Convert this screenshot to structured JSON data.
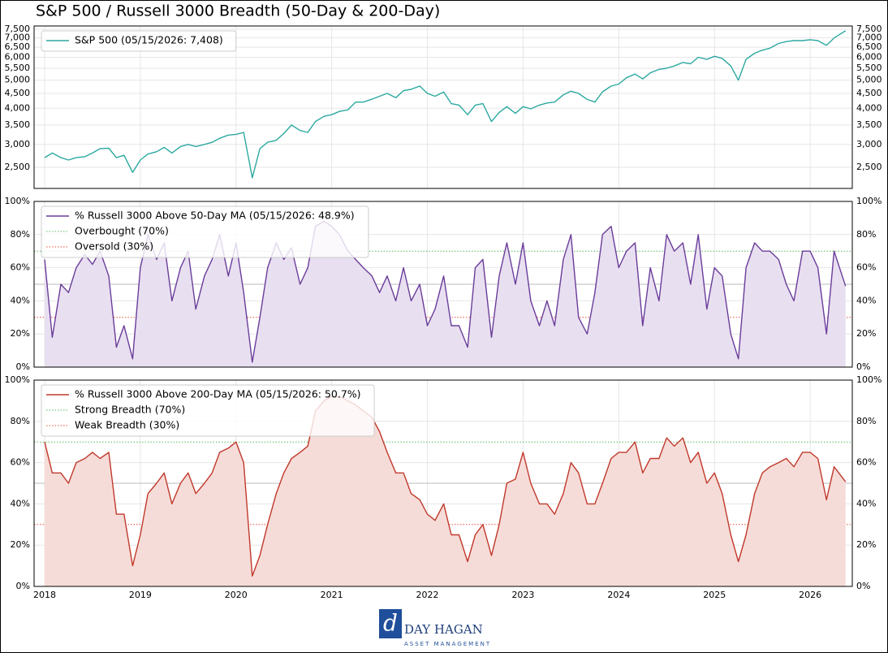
{
  "title": "S&P 500 / Russell 3000 Breadth (50-Day & 200-Day)",
  "logo": {
    "name": "DAY HAGAN",
    "tagline": "ASSET MANAGEMENT"
  },
  "chart_data": [
    {
      "type": "line",
      "log_y": true,
      "grid": true,
      "legend": "upper left",
      "fill": false,
      "x": [
        2018,
        2018.08,
        2018.17,
        2018.25,
        2018.33,
        2018.42,
        2018.5,
        2018.58,
        2018.67,
        2018.75,
        2018.83,
        2018.92,
        2019,
        2019.08,
        2019.17,
        2019.25,
        2019.33,
        2019.42,
        2019.5,
        2019.58,
        2019.67,
        2019.75,
        2019.83,
        2019.92,
        2020,
        2020.08,
        2020.17,
        2020.25,
        2020.33,
        2020.42,
        2020.5,
        2020.58,
        2020.67,
        2020.75,
        2020.83,
        2020.92,
        2021,
        2021.08,
        2021.17,
        2021.25,
        2021.33,
        2021.42,
        2021.5,
        2021.58,
        2021.67,
        2021.75,
        2021.83,
        2021.92,
        2022,
        2022.08,
        2022.17,
        2022.25,
        2022.33,
        2022.42,
        2022.5,
        2022.58,
        2022.67,
        2022.75,
        2022.83,
        2022.92,
        2023,
        2023.08,
        2023.17,
        2023.25,
        2023.33,
        2023.42,
        2023.5,
        2023.58,
        2023.67,
        2023.75,
        2023.83,
        2023.92,
        2024,
        2024.08,
        2024.17,
        2024.25,
        2024.33,
        2024.42,
        2024.5,
        2024.58,
        2024.67,
        2024.75,
        2024.83,
        2024.92,
        2025,
        2025.08,
        2025.17,
        2025.25,
        2025.33,
        2025.42,
        2025.5,
        2025.58,
        2025.67,
        2025.75,
        2025.83,
        2025.92,
        2026,
        2026.08,
        2026.17,
        2026.25,
        2026.37
      ],
      "series": [
        {
          "name": "S&P 500 (05/15/2026: 7,408)",
          "color": "#2ca9a1",
          "values": [
            2700,
            2800,
            2700,
            2650,
            2700,
            2720,
            2800,
            2900,
            2910,
            2700,
            2750,
            2400,
            2650,
            2780,
            2830,
            2930,
            2800,
            2950,
            3000,
            2950,
            3000,
            3050,
            3150,
            3230,
            3250,
            3300,
            2300,
            2900,
            3050,
            3100,
            3270,
            3500,
            3350,
            3300,
            3600,
            3750,
            3800,
            3900,
            3950,
            4200,
            4200,
            4300,
            4400,
            4500,
            4350,
            4600,
            4650,
            4770,
            4500,
            4400,
            4550,
            4150,
            4100,
            3800,
            4100,
            4150,
            3600,
            3870,
            4050,
            3840,
            4050,
            3980,
            4100,
            4170,
            4200,
            4450,
            4580,
            4500,
            4290,
            4200,
            4560,
            4770,
            4850,
            5100,
            5250,
            5050,
            5300,
            5450,
            5500,
            5600,
            5760,
            5700,
            6000,
            5900,
            6050,
            5950,
            5600,
            5000,
            5900,
            6200,
            6350,
            6450,
            6700,
            6800,
            6850,
            6850,
            6900,
            6850,
            6600,
            7000,
            7408
          ]
        }
      ],
      "xlim": [
        2017.89,
        2026.44
      ],
      "xticks": [
        2018,
        2019,
        2020,
        2021,
        2022,
        2023,
        2024,
        2025,
        2026
      ],
      "ylim": [
        2113,
        7697
      ],
      "yticks": [
        {
          "value": 2500,
          "label": "2,500"
        },
        {
          "value": 3000,
          "label": "3,000"
        },
        {
          "value": 3500,
          "label": "3,500"
        },
        {
          "value": 4000,
          "label": "4,000"
        },
        {
          "value": 4500,
          "label": "4,500"
        },
        {
          "value": 5000,
          "label": "5,000"
        },
        {
          "value": 5500,
          "label": "5,500"
        },
        {
          "value": 6000,
          "label": "6,000"
        },
        {
          "value": 6500,
          "label": "6,500"
        },
        {
          "value": 7000,
          "label": "7,000"
        },
        {
          "value": 7500,
          "label": "7,500"
        }
      ]
    },
    {
      "type": "line",
      "log_y": false,
      "grid": true,
      "legend": "upper left",
      "fill": true,
      "fill_color": "#e8dff0",
      "midline": 50,
      "x": [
        2018,
        2018.08,
        2018.17,
        2018.25,
        2018.33,
        2018.42,
        2018.5,
        2018.58,
        2018.67,
        2018.75,
        2018.83,
        2018.92,
        2019,
        2019.08,
        2019.17,
        2019.25,
        2019.33,
        2019.42,
        2019.5,
        2019.58,
        2019.67,
        2019.75,
        2019.83,
        2019.92,
        2020,
        2020.08,
        2020.17,
        2020.25,
        2020.33,
        2020.42,
        2020.5,
        2020.58,
        2020.67,
        2020.75,
        2020.83,
        2020.92,
        2021,
        2021.08,
        2021.17,
        2021.25,
        2021.33,
        2021.42,
        2021.5,
        2021.58,
        2021.67,
        2021.75,
        2021.83,
        2021.92,
        2022,
        2022.08,
        2022.17,
        2022.25,
        2022.33,
        2022.42,
        2022.5,
        2022.58,
        2022.67,
        2022.75,
        2022.83,
        2022.92,
        2023,
        2023.08,
        2023.17,
        2023.25,
        2023.33,
        2023.42,
        2023.5,
        2023.58,
        2023.67,
        2023.75,
        2023.83,
        2023.92,
        2024,
        2024.08,
        2024.17,
        2024.25,
        2024.33,
        2024.42,
        2024.5,
        2024.58,
        2024.67,
        2024.75,
        2024.83,
        2024.92,
        2025,
        2025.08,
        2025.17,
        2025.25,
        2025.33,
        2025.42,
        2025.5,
        2025.58,
        2025.67,
        2025.75,
        2025.83,
        2025.92,
        2026,
        2026.08,
        2026.17,
        2026.25,
        2026.37
      ],
      "series": [
        {
          "name": "% Russell 3000 Above 50-Day MA (05/15/2026: 48.9%)",
          "color": "#6a3d9a",
          "values": [
            65,
            18,
            50,
            45,
            60,
            68,
            62,
            70,
            55,
            12,
            25,
            5,
            60,
            80,
            65,
            75,
            40,
            60,
            70,
            35,
            55,
            65,
            80,
            55,
            75,
            45,
            3,
            30,
            60,
            75,
            65,
            72,
            50,
            60,
            85,
            88,
            85,
            80,
            70,
            65,
            60,
            55,
            45,
            55,
            40,
            60,
            40,
            50,
            25,
            35,
            55,
            25,
            25,
            12,
            60,
            65,
            18,
            55,
            75,
            50,
            75,
            40,
            25,
            40,
            25,
            65,
            80,
            30,
            20,
            45,
            80,
            85,
            60,
            70,
            75,
            25,
            60,
            40,
            80,
            70,
            75,
            50,
            80,
            35,
            60,
            55,
            20,
            5,
            60,
            75,
            70,
            70,
            65,
            50,
            40,
            70,
            70,
            60,
            20,
            70,
            48.9
          ]
        }
      ],
      "hlines": [
        {
          "name": "Overbought (70%)",
          "value": 70,
          "color": "#5cb85c"
        },
        {
          "name": "Oversold (30%)",
          "value": 30,
          "color": "#e74c3c"
        }
      ],
      "xlim": [
        2017.89,
        2026.44
      ],
      "xticks": [
        2018,
        2019,
        2020,
        2021,
        2022,
        2023,
        2024,
        2025,
        2026
      ],
      "ylim": [
        0,
        100
      ],
      "yticks": [
        {
          "value": 0,
          "label": "0%"
        },
        {
          "value": 20,
          "label": "20%"
        },
        {
          "value": 40,
          "label": "40%"
        },
        {
          "value": 60,
          "label": "60%"
        },
        {
          "value": 80,
          "label": "80%"
        },
        {
          "value": 100,
          "label": "100%"
        }
      ]
    },
    {
      "type": "line",
      "log_y": false,
      "grid": true,
      "legend": "upper left",
      "fill": true,
      "fill_color": "#f6dcd8",
      "midline": 50,
      "x": [
        2018,
        2018.08,
        2018.17,
        2018.25,
        2018.33,
        2018.42,
        2018.5,
        2018.58,
        2018.67,
        2018.75,
        2018.83,
        2018.92,
        2019,
        2019.08,
        2019.17,
        2019.25,
        2019.33,
        2019.42,
        2019.5,
        2019.58,
        2019.67,
        2019.75,
        2019.83,
        2019.92,
        2020,
        2020.08,
        2020.17,
        2020.25,
        2020.33,
        2020.42,
        2020.5,
        2020.58,
        2020.67,
        2020.75,
        2020.83,
        2020.92,
        2021,
        2021.08,
        2021.17,
        2021.25,
        2021.33,
        2021.42,
        2021.5,
        2021.58,
        2021.67,
        2021.75,
        2021.83,
        2021.92,
        2022,
        2022.08,
        2022.17,
        2022.25,
        2022.33,
        2022.42,
        2022.5,
        2022.58,
        2022.67,
        2022.75,
        2022.83,
        2022.92,
        2023,
        2023.08,
        2023.17,
        2023.25,
        2023.33,
        2023.42,
        2023.5,
        2023.58,
        2023.67,
        2023.75,
        2023.83,
        2023.92,
        2024,
        2024.08,
        2024.17,
        2024.25,
        2024.33,
        2024.42,
        2024.5,
        2024.58,
        2024.67,
        2024.75,
        2024.83,
        2024.92,
        2025,
        2025.08,
        2025.17,
        2025.25,
        2025.33,
        2025.42,
        2025.5,
        2025.58,
        2025.67,
        2025.75,
        2025.83,
        2025.92,
        2026,
        2026.08,
        2026.17,
        2026.25,
        2026.37
      ],
      "series": [
        {
          "name": "% Russell 3000 Above 200-Day MA (05/15/2026: 50.7%)",
          "color": "#c0392b",
          "values": [
            70,
            55,
            55,
            50,
            60,
            62,
            65,
            62,
            65,
            35,
            35,
            10,
            25,
            45,
            50,
            55,
            40,
            50,
            55,
            45,
            50,
            55,
            65,
            67,
            70,
            60,
            5,
            15,
            30,
            45,
            55,
            62,
            65,
            68,
            85,
            90,
            92,
            92,
            90,
            88,
            85,
            82,
            75,
            65,
            55,
            55,
            45,
            42,
            35,
            32,
            40,
            25,
            25,
            12,
            25,
            30,
            15,
            30,
            50,
            52,
            65,
            50,
            40,
            40,
            35,
            45,
            60,
            55,
            40,
            40,
            50,
            62,
            65,
            65,
            70,
            55,
            62,
            62,
            72,
            68,
            72,
            60,
            65,
            50,
            55,
            45,
            25,
            12,
            25,
            45,
            55,
            58,
            60,
            62,
            58,
            65,
            65,
            62,
            42,
            58,
            50.7
          ]
        }
      ],
      "hlines": [
        {
          "name": "Strong Breadth (70%)",
          "value": 70,
          "color": "#5cb85c"
        },
        {
          "name": "Weak Breadth (30%)",
          "value": 30,
          "color": "#e74c3c"
        }
      ],
      "xlim": [
        2017.89,
        2026.44
      ],
      "xticks": [
        2018,
        2019,
        2020,
        2021,
        2022,
        2023,
        2024,
        2025,
        2026
      ],
      "ylim": [
        0,
        100
      ],
      "yticks": [
        {
          "value": 0,
          "label": "0%"
        },
        {
          "value": 20,
          "label": "20%"
        },
        {
          "value": 40,
          "label": "40%"
        },
        {
          "value": 60,
          "label": "60%"
        },
        {
          "value": 80,
          "label": "80%"
        },
        {
          "value": 100,
          "label": "100%"
        }
      ]
    }
  ]
}
